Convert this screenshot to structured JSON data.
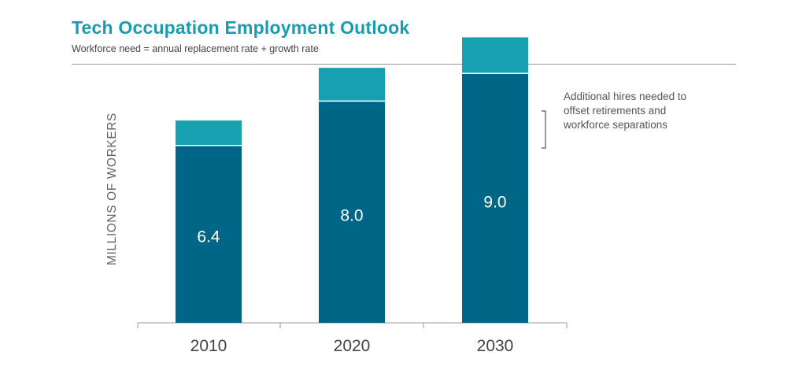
{
  "header": {
    "title": "Tech Occupation Employment Outlook",
    "subtitle": "Workforce need = annual replacement rate + growth rate"
  },
  "legend": {
    "additional_label": "Additional hires needed to offset retirements and workforce separations"
  },
  "colors": {
    "base": "#006688",
    "additional": "#16a0b0",
    "axis": "#999999",
    "axis_text": "#444444",
    "value_text": "#ffffff"
  },
  "chart_data": {
    "type": "bar",
    "stacked": true,
    "categories": [
      "2010",
      "2020",
      "2030"
    ],
    "ylabel": "MILLIONS OF WORKERS",
    "xlabel": "",
    "ylim": [
      0,
      11
    ],
    "series": [
      {
        "values": [
          6.4,
          8.0,
          9.0
        ],
        "labels": [
          "6.4",
          "8.0",
          "9.0"
        ]
      },
      {
        "name": "Additional hires needed to offset retirements and workforce separations",
        "values": [
          0.9,
          1.2,
          1.3
        ]
      }
    ],
    "legend_position": "top-right"
  }
}
